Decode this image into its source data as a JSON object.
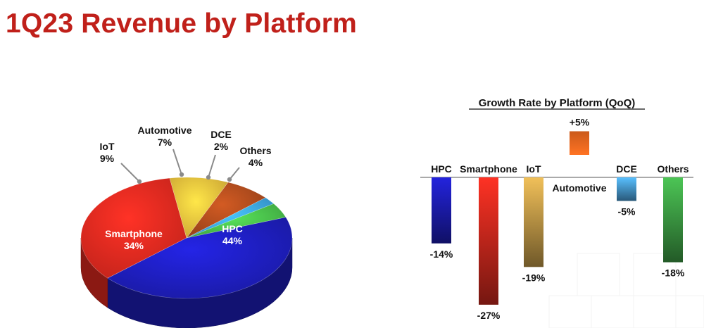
{
  "page": {
    "title": "1Q23 Revenue by Platform"
  },
  "chart_data": [
    {
      "type": "pie",
      "title": "",
      "categories": [
        "HPC",
        "Smartphone",
        "IoT",
        "Automotive",
        "DCE",
        "Others"
      ],
      "values": [
        44,
        34,
        9,
        7,
        2,
        4
      ],
      "value_labels": [
        "44%",
        "34%",
        "9%",
        "7%",
        "2%",
        "4%"
      ],
      "colors": [
        "#1d1db8",
        "#e0281e",
        "#e8b93a",
        "#a9491c",
        "#3aa0e0",
        "#46b748"
      ],
      "style": "3d"
    },
    {
      "type": "bar",
      "title": "Growth Rate by Platform (QoQ)",
      "categories": [
        "HPC",
        "Smartphone",
        "IoT",
        "Automotive",
        "DCE",
        "Others"
      ],
      "values": [
        -14,
        -27,
        -19,
        5,
        -5,
        -18
      ],
      "value_labels": [
        "-14%",
        "-27%",
        "-19%",
        "+5%",
        "-5%",
        "-18%"
      ],
      "colors": [
        "#1d1db8",
        "#d42a1e",
        "#c9a04a",
        "#e2641e",
        "#4aa0dc",
        "#3fa447"
      ],
      "xlabel": "",
      "ylabel": "",
      "grid": false
    }
  ]
}
